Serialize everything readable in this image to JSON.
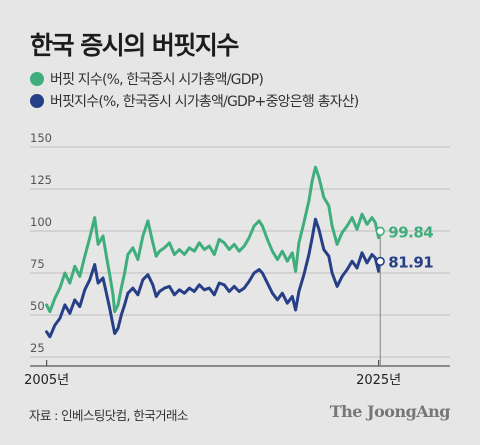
{
  "title": "한국 증시의 버핏지수",
  "colors": {
    "green": "#3fae7c",
    "navy": "#263f86",
    "axis": "#555555",
    "grid": "#bdbdbd"
  },
  "chart_data": {
    "type": "line",
    "ylim": [
      25,
      150
    ],
    "yticks": [
      25,
      50,
      75,
      100,
      125,
      150
    ],
    "xlim": [
      2004.0,
      2029.3
    ],
    "xtick_labels": [
      {
        "x": 2005,
        "label": "2005년"
      },
      {
        "x": 2025,
        "label": "2025년"
      }
    ],
    "grid": true,
    "legend_position": "top-left",
    "series": [
      {
        "name": "버핏 지수(%, 한국증시 시가총액/GDP)",
        "color": "#3fae7c",
        "end_label": "99.84",
        "x": [
          2005.0,
          2005.2,
          2005.5,
          2005.8,
          2006.1,
          2006.4,
          2006.7,
          2007.0,
          2007.3,
          2007.6,
          2007.9,
          2008.1,
          2008.4,
          2008.6,
          2008.8,
          2009.0,
          2009.1,
          2009.3,
          2009.5,
          2009.7,
          2009.9,
          2010.2,
          2010.5,
          2010.8,
          2011.1,
          2011.4,
          2011.6,
          2011.8,
          2012.1,
          2012.4,
          2012.7,
          2013.0,
          2013.3,
          2013.6,
          2013.9,
          2014.2,
          2014.5,
          2014.8,
          2015.1,
          2015.4,
          2015.7,
          2016.0,
          2016.3,
          2016.6,
          2016.9,
          2017.2,
          2017.5,
          2017.8,
          2018.0,
          2018.3,
          2018.6,
          2018.9,
          2019.2,
          2019.5,
          2019.8,
          2020.0,
          2020.2,
          2020.5,
          2020.8,
          2021.0,
          2021.2,
          2021.4,
          2021.7,
          2022.0,
          2022.2,
          2022.5,
          2022.8,
          2023.1,
          2023.4,
          2023.7,
          2024.0,
          2024.3,
          2024.6,
          2024.8,
          2025.0,
          2025.1
        ],
        "values": [
          56,
          52,
          60,
          66,
          75,
          69,
          79,
          73,
          85,
          96,
          108,
          92,
          97,
          85,
          74,
          62,
          52,
          56,
          66,
          75,
          86,
          90,
          83,
          97,
          106,
          93,
          85,
          88,
          90,
          93,
          86,
          89,
          86,
          90,
          88,
          93,
          89,
          91,
          86,
          95,
          93,
          89,
          92,
          88,
          91,
          96,
          103,
          106,
          103,
          95,
          88,
          83,
          88,
          82,
          87,
          76,
          93,
          105,
          118,
          130,
          138,
          132,
          120,
          115,
          103,
          92,
          99,
          103,
          108,
          101,
          110,
          104,
          108,
          105,
          96,
          99.84
        ]
      },
      {
        "name": "버핏지수(%, 한국증시 시가총액/GDP+중앙은행 총자산)",
        "color": "#263f86",
        "end_label": "81.91",
        "x": [
          2005.0,
          2005.2,
          2005.5,
          2005.8,
          2006.1,
          2006.4,
          2006.7,
          2007.0,
          2007.3,
          2007.6,
          2007.9,
          2008.1,
          2008.4,
          2008.6,
          2008.8,
          2009.0,
          2009.1,
          2009.3,
          2009.5,
          2009.7,
          2009.9,
          2010.2,
          2010.5,
          2010.8,
          2011.1,
          2011.4,
          2011.6,
          2011.8,
          2012.1,
          2012.4,
          2012.7,
          2013.0,
          2013.3,
          2013.6,
          2013.9,
          2014.2,
          2014.5,
          2014.8,
          2015.1,
          2015.4,
          2015.7,
          2016.0,
          2016.3,
          2016.6,
          2016.9,
          2017.2,
          2017.5,
          2017.8,
          2018.0,
          2018.3,
          2018.6,
          2018.9,
          2019.2,
          2019.5,
          2019.8,
          2020.0,
          2020.2,
          2020.5,
          2020.8,
          2021.0,
          2021.2,
          2021.4,
          2021.7,
          2022.0,
          2022.2,
          2022.5,
          2022.8,
          2023.1,
          2023.4,
          2023.7,
          2024.0,
          2024.3,
          2024.6,
          2024.8,
          2025.0,
          2025.1
        ],
        "values": [
          40,
          37,
          44,
          48,
          56,
          51,
          59,
          55,
          65,
          71,
          80,
          69,
          72,
          63,
          54,
          44,
          39,
          42,
          50,
          56,
          63,
          66,
          62,
          71,
          74,
          68,
          61,
          64,
          66,
          67,
          62,
          65,
          63,
          66,
          64,
          68,
          65,
          66,
          62,
          69,
          68,
          64,
          67,
          64,
          66,
          70,
          75,
          77,
          75,
          69,
          63,
          59,
          63,
          57,
          61,
          53,
          64,
          74,
          86,
          96,
          107,
          101,
          89,
          85,
          75,
          67,
          73,
          77,
          82,
          78,
          87,
          81,
          86,
          84,
          76,
          81.91
        ]
      }
    ]
  },
  "legend": [
    {
      "label": "버핏 지수(%, 한국증시 시가총액/GDP)",
      "color": "#3fae7c"
    },
    {
      "label": "버핏지수(%, 한국증시 시가총액/GDP+중앙은행 총자산)",
      "color": "#263f86"
    }
  ],
  "source": "자료 : 인베스팅닷컴, 한국거래소",
  "brand": "The JoongAng"
}
